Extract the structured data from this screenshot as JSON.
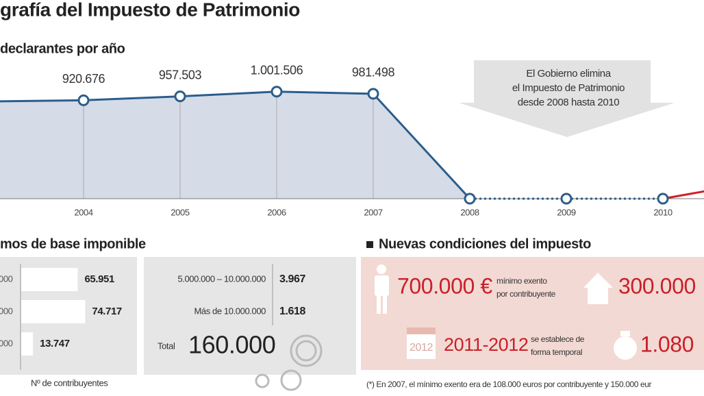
{
  "title": "grafía del Impuesto de Patrimonio",
  "chart_data": {
    "type": "line",
    "subtitle": "declarantes por año",
    "categories": [
      null,
      "2004",
      "2005",
      "2006",
      "2007",
      "2008",
      "2009",
      "2010",
      null
    ],
    "values": [
      910000,
      920676,
      957503,
      1001506,
      981498,
      0,
      0,
      0,
      160000
    ],
    "value_labels": [
      null,
      "920.676",
      "957.503",
      "1.001.506",
      "981.498",
      null,
      null,
      null,
      null
    ],
    "ylim": [
      0,
      1250000
    ],
    "colors": {
      "line": "#2b5d8c",
      "area": "#d5dce7",
      "restored": "#d0202a"
    },
    "annotation": [
      "El Gobierno elimina",
      "el Impuesto de Patrimonio",
      "desde 2008 hasta 2010"
    ]
  },
  "brackets": {
    "heading": "mos de base imponible",
    "bars": {
      "labels": [
        "000",
        "000",
        "000"
      ],
      "values": [
        65951,
        74717,
        13747
      ],
      "value_labels": [
        "65.951",
        "74.717",
        "13.747"
      ],
      "xlim": [
        0,
        80000
      ]
    },
    "rows": [
      [
        "5.000.000 – 10.000.000",
        "3.967"
      ],
      [
        "Más de 10.000.000",
        "1.618"
      ]
    ],
    "total_label": "Total",
    "total": "160.000",
    "footer": "Nº de contribuyentes"
  },
  "conditions": {
    "heading": "Nuevas condiciones del impuesto",
    "items": [
      {
        "value": "700.000 €",
        "desc": [
          "mínimo exento",
          "por contribuyente"
        ]
      },
      {
        "value": "300.000"
      },
      {
        "value": "2011-2012",
        "desc": [
          "se establece de",
          "forma temporal"
        ]
      },
      {
        "value": "1.080"
      }
    ],
    "calendar_label": "2012",
    "footnote": "(*) En 2007, el mínimo exento era de 108.000 euros por contribuyente y 150.000 eur"
  }
}
